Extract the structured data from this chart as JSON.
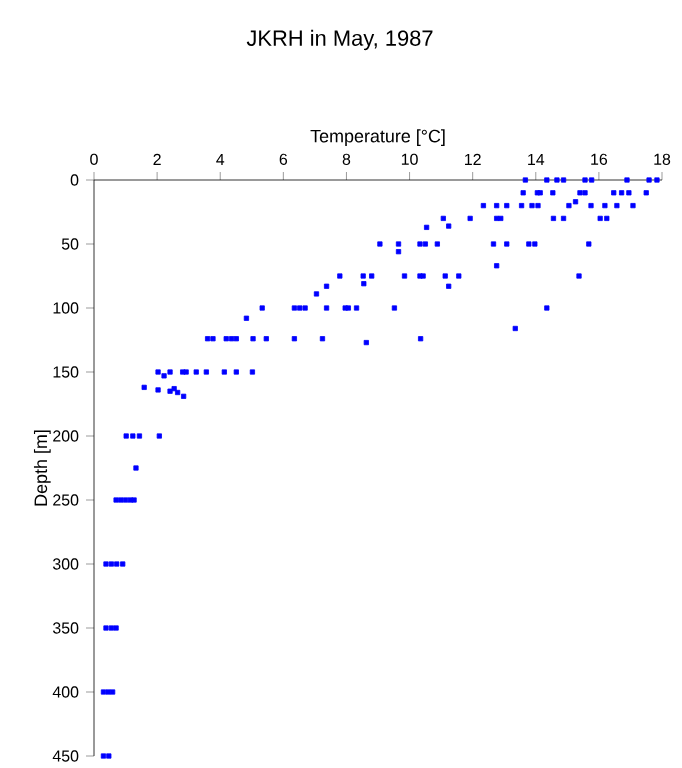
{
  "chart_data": {
    "type": "scatter",
    "title": "JKRH in May, 1987",
    "xlabel": "Temperature [°C]",
    "ylabel": "Depth [m]",
    "xlim": [
      0,
      18
    ],
    "xticks": [
      0,
      2,
      4,
      6,
      8,
      10,
      12,
      14,
      16,
      18
    ],
    "ylim": [
      450,
      0
    ],
    "yticks": [
      0,
      50,
      100,
      150,
      200,
      250,
      300,
      350,
      400,
      450
    ],
    "marker": "square",
    "series": [
      {
        "color": "#0000ff",
        "x": [
          13.67,
          14.35,
          14.67,
          14.88,
          15.56,
          15.77,
          16.89,
          17.59,
          17.84,
          13.6,
          14.05,
          14.14,
          14.54,
          15.4,
          15.56,
          16.47,
          16.72,
          16.95,
          17.5,
          12.34,
          12.76,
          13.08,
          13.55,
          13.88,
          14.07,
          15.05,
          15.26,
          15.75,
          16.19,
          16.57,
          17.08,
          11.07,
          11.92,
          12.76,
          12.89,
          14.56,
          14.88,
          16.04,
          16.25,
          10.54,
          11.24,
          9.06,
          9.65,
          10.33,
          10.5,
          10.88,
          12.66,
          13.08,
          13.78,
          13.97,
          15.68,
          9.65,
          12.76,
          7.79,
          8.53,
          8.8,
          9.84,
          10.33,
          10.43,
          11.13,
          11.56,
          15.37,
          8.55,
          11.24,
          7.05,
          7.37,
          5.33,
          6.35,
          6.52,
          6.69,
          7.37,
          7.96,
          8.06,
          8.32,
          9.52,
          14.35,
          4.83,
          13.35,
          3.6,
          3.77,
          4.19,
          4.36,
          4.51,
          5.04,
          5.46,
          6.35,
          7.24,
          10.35,
          8.63,
          2.03,
          2.41,
          2.81,
          2.92,
          3.24,
          3.56,
          4.13,
          4.51,
          5.02,
          2.22,
          1.59,
          2.03,
          2.41,
          2.54,
          2.65,
          2.84,
          1.02,
          1.23,
          1.44,
          2.07,
          1.33,
          0.7,
          0.85,
          1.0,
          1.15,
          1.27,
          0.38,
          0.55,
          0.72,
          0.91,
          0.38,
          0.55,
          0.7,
          0.3,
          0.45,
          0.59,
          0.3,
          0.47
        ],
        "values": [
          0,
          0,
          0,
          0,
          0,
          0,
          0,
          0,
          0,
          10,
          10,
          10,
          10,
          10,
          10,
          10,
          10,
          10,
          10,
          20,
          20,
          20,
          20,
          20,
          20,
          20,
          17,
          20,
          20,
          20,
          20,
          30,
          30,
          30,
          30,
          30,
          30,
          30,
          30,
          37,
          36,
          50,
          50,
          50,
          50,
          50,
          50,
          50,
          50,
          50,
          50,
          56,
          67,
          75,
          75,
          75,
          75,
          75,
          75,
          75,
          75,
          75,
          81,
          83,
          89,
          83,
          100,
          100,
          100,
          100,
          100,
          100,
          100,
          100,
          100,
          100,
          108,
          116,
          124,
          124,
          124,
          124,
          124,
          124,
          124,
          124,
          124,
          124,
          127,
          150,
          150,
          150,
          150,
          150,
          150,
          150,
          150,
          150,
          153,
          162,
          164,
          165,
          163,
          166,
          169,
          200,
          200,
          200,
          200,
          225,
          250,
          250,
          250,
          250,
          250,
          300,
          300,
          300,
          300,
          350,
          350,
          350,
          400,
          400,
          400,
          450,
          450
        ]
      }
    ]
  }
}
